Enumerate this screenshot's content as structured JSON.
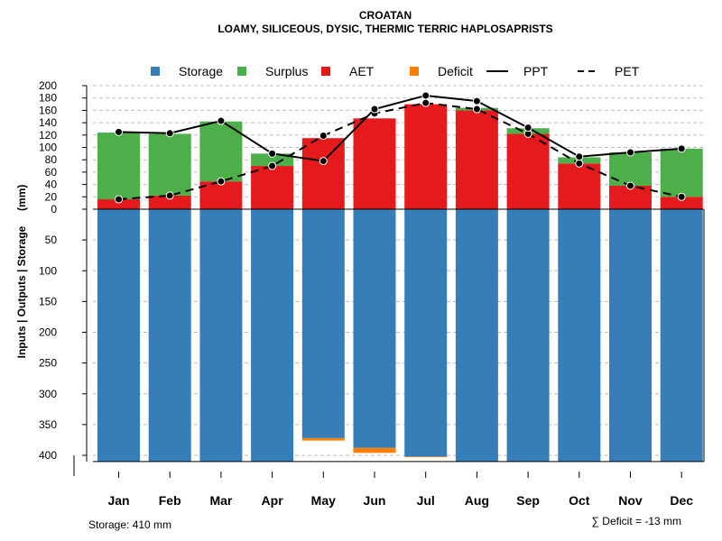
{
  "chart_data": {
    "type": "bar",
    "title": "CROATAN",
    "subtitle": "LOAMY, SILICEOUS, DYSIC, THERMIC TERRIC HAPLOSAPRISTS",
    "ylabel": "Inputs | Outputs | Storage     (mm)",
    "categories": [
      "Jan",
      "Feb",
      "Mar",
      "Apr",
      "May",
      "Jun",
      "Jul",
      "Aug",
      "Sep",
      "Oct",
      "Nov",
      "Dec"
    ],
    "ylim_top": [
      0,
      200
    ],
    "ylim_bottom": [
      0,
      410
    ],
    "yticks_top": [
      "0",
      "20",
      "40",
      "60",
      "80",
      "100",
      "120",
      "140",
      "160",
      "180",
      "200"
    ],
    "yticks_bottom": [
      "50",
      "100",
      "150",
      "200",
      "250",
      "300",
      "350",
      "400"
    ],
    "legend": [
      {
        "label": "Storage",
        "kind": "box",
        "color": "#377eb8"
      },
      {
        "label": "Surplus",
        "kind": "box",
        "color": "#4daf4a"
      },
      {
        "label": "AET",
        "kind": "box",
        "color": "#e41a1c"
      },
      {
        "label": "Deficit",
        "kind": "box",
        "color": "#ff7f00"
      },
      {
        "label": "PPT",
        "kind": "solid-line",
        "color": "#000000"
      },
      {
        "label": "PET",
        "kind": "dashed-line",
        "color": "#000000"
      }
    ],
    "series": [
      {
        "name": "AET",
        "values": [
          16,
          22,
          45,
          70,
          115,
          147,
          170,
          160,
          122,
          74,
          38,
          20
        ]
      },
      {
        "name": "Surplus",
        "values": [
          108,
          100,
          97,
          20,
          0,
          0,
          0,
          4,
          9,
          10,
          54,
          78
        ]
      },
      {
        "name": "Storage",
        "values": [
          410,
          410,
          410,
          410,
          372,
          388,
          402,
          410,
          410,
          410,
          410,
          410
        ]
      },
      {
        "name": "Deficit",
        "values": [
          0,
          0,
          0,
          0,
          -4,
          -8,
          -1,
          0,
          0,
          0,
          0,
          0
        ]
      },
      {
        "name": "PPT",
        "values": [
          125,
          123,
          143,
          90,
          78,
          162,
          184,
          175,
          132,
          85,
          92,
          98
        ]
      },
      {
        "name": "PET",
        "values": [
          16,
          22,
          45,
          70,
          119,
          155,
          172,
          162,
          122,
          74,
          38,
          20
        ]
      }
    ],
    "storage_label": "Storage: 410 mm",
    "deficit_label": "∑ Deficit = -13 mm"
  }
}
